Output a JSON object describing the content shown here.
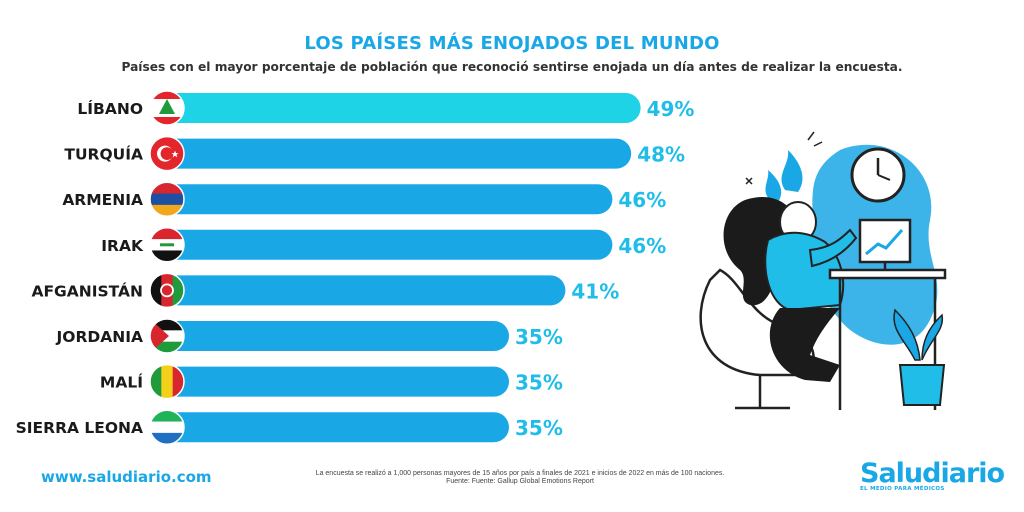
{
  "header": {
    "title": "LOS PAÍSES MÁS ENOJADOS DEL MUNDO",
    "subtitle": "Países con el mayor porcentaje de población que reconoció sentirse enojada un día antes de realizar la encuesta."
  },
  "chart_data": {
    "type": "bar",
    "orientation": "horizontal",
    "categories": [
      "LÍBANO",
      "TURQUÍA",
      "ARMENIA",
      "IRAK",
      "AFGANISTÁN",
      "JORDANIA",
      "MALÍ",
      "SIERRA LEONA"
    ],
    "values": [
      49,
      48,
      46,
      46,
      41,
      35,
      35,
      35
    ],
    "value_labels": [
      "49%",
      "48%",
      "46%",
      "46%",
      "41%",
      "35%",
      "35%",
      "35%"
    ],
    "unit": "%",
    "flags": [
      "lebanon-flag-icon",
      "turkey-flag-icon",
      "armenia-flag-icon",
      "iraq-flag-icon",
      "afghanistan-flag-icon",
      "jordan-flag-icon",
      "mali-flag-icon",
      "sierra-leone-flag-icon"
    ],
    "colors": {
      "first_bar": "#1ed3e6",
      "bars": "#1aa7e6",
      "value_text": "#21bde9",
      "category_text": "#1a1a1a"
    },
    "grid": false,
    "legend": "none"
  },
  "footer": {
    "url": "www.saludiario.com",
    "note_line1": "La encuesta se realizó a 1,000 personas mayores de 15 años por país a finales de 2021 e inicios de 2022 en más de 100 naciones.",
    "note_line2": "Fuente: Fuente: Gallup Global Emotions Report",
    "brand": "Saludiario",
    "tagline": "EL MEDIO PARA MÉDICOS"
  },
  "illustration": {
    "icon": "angry-woman-at-desk-illustration"
  }
}
